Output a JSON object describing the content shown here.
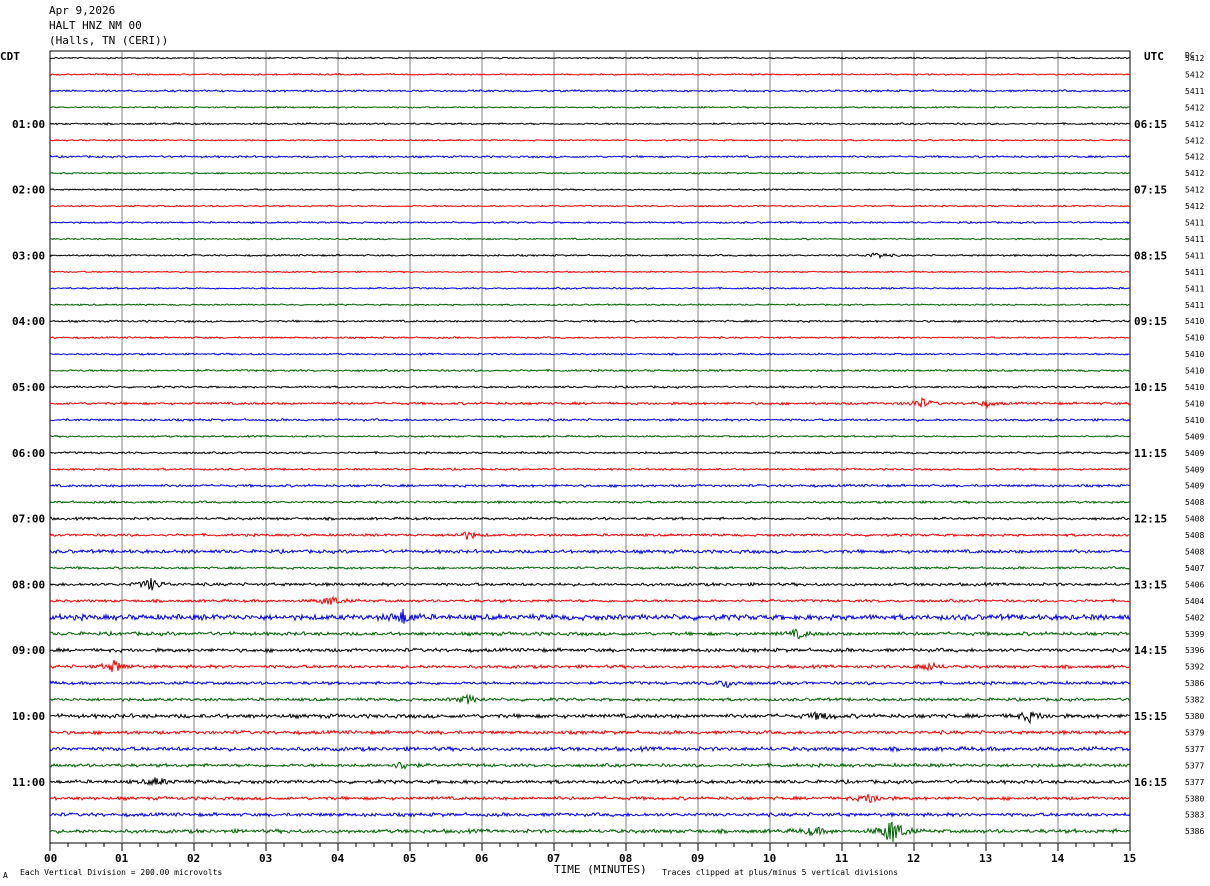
{
  "header": {
    "date": "Apr 9,2026",
    "station": "HALT HNZ NM 00",
    "location": "(Halls, TN (CERI))"
  },
  "left_axis_title": "CDT",
  "right_axis_title": "UTC",
  "dc_title": "DC",
  "footer": {
    "scale_note": "Each Vertical Division =  200.00 microvolts",
    "clip_note": "Traces clipped at plus/minus 5 vertical divisions",
    "corner_mark": "A"
  },
  "colors": {
    "black": "#000000",
    "red": "#ff0000",
    "blue": "#0000ff",
    "green": "#006400",
    "grid": "#808080"
  },
  "chart_data": {
    "type": "line",
    "xlabel": "TIME (MINUTES)",
    "xlim": [
      0,
      15
    ],
    "x_ticks": [
      "00",
      "01",
      "02",
      "03",
      "04",
      "05",
      "06",
      "07",
      "08",
      "09",
      "10",
      "11",
      "12",
      "13",
      "14",
      "15"
    ],
    "trace_color_cycle": [
      "black",
      "red",
      "blue",
      "green"
    ],
    "left_hour_labels": [
      "01:00",
      "02:00",
      "03:00",
      "04:00",
      "05:00",
      "06:00",
      "07:00",
      "08:00",
      "09:00",
      "10:00",
      "11:00"
    ],
    "right_hour_labels": [
      "06:15",
      "07:15",
      "08:15",
      "09:15",
      "10:15",
      "11:15",
      "12:15",
      "13:15",
      "14:15",
      "15:15",
      "16:15"
    ],
    "dc_offsets": [
      "5412",
      "5412",
      "5411",
      "5412",
      "5412",
      "5412",
      "5412",
      "5412",
      "5412",
      "5412",
      "5411",
      "5411",
      "5411",
      "5411",
      "5411",
      "5411",
      "5410",
      "5410",
      "5410",
      "5410",
      "5410",
      "5410",
      "5410",
      "5409",
      "5409",
      "5409",
      "5409",
      "5408",
      "5408",
      "5408",
      "5408",
      "5407",
      "5406",
      "5404",
      "5402",
      "5399",
      "5396",
      "5392",
      "5386",
      "5382",
      "5380",
      "5379",
      "5377",
      "5377",
      "5377",
      "5380",
      "5383",
      "5386"
    ],
    "trace_amplitude": [
      0.6,
      0.6,
      0.8,
      0.6,
      0.7,
      0.6,
      0.8,
      0.6,
      0.6,
      0.6,
      0.7,
      0.6,
      0.7,
      0.6,
      0.7,
      0.6,
      0.8,
      0.7,
      0.7,
      0.8,
      0.8,
      1.0,
      0.9,
      0.7,
      0.8,
      0.8,
      1.0,
      0.9,
      1.0,
      1.0,
      1.4,
      0.9,
      1.2,
      1.1,
      2.2,
      1.4,
      1.4,
      1.3,
      1.2,
      1.2,
      1.6,
      1.4,
      1.6,
      1.3,
      1.4,
      1.3,
      1.4,
      1.5
    ],
    "events": [
      {
        "trace": 12,
        "t": 11.5,
        "amp": 3
      },
      {
        "trace": 21,
        "t": 12.1,
        "amp": 5
      },
      {
        "trace": 21,
        "t": 13.0,
        "amp": 3
      },
      {
        "trace": 29,
        "t": 5.8,
        "amp": 4
      },
      {
        "trace": 32,
        "t": 1.4,
        "amp": 6
      },
      {
        "trace": 33,
        "t": 3.9,
        "amp": 5
      },
      {
        "trace": 34,
        "t": 4.9,
        "amp": 7
      },
      {
        "trace": 35,
        "t": 10.4,
        "amp": 4
      },
      {
        "trace": 37,
        "t": 0.9,
        "amp": 6
      },
      {
        "trace": 37,
        "t": 12.2,
        "amp": 4
      },
      {
        "trace": 38,
        "t": 9.4,
        "amp": 4
      },
      {
        "trace": 39,
        "t": 5.8,
        "amp": 4
      },
      {
        "trace": 40,
        "t": 10.7,
        "amp": 4
      },
      {
        "trace": 40,
        "t": 13.6,
        "amp": 5
      },
      {
        "trace": 43,
        "t": 4.9,
        "amp": 4
      },
      {
        "trace": 44,
        "t": 1.5,
        "amp": 4
      },
      {
        "trace": 45,
        "t": 11.4,
        "amp": 5
      },
      {
        "trace": 47,
        "t": 11.7,
        "amp": 14
      },
      {
        "trace": 47,
        "t": 10.6,
        "amp": 4
      }
    ]
  }
}
